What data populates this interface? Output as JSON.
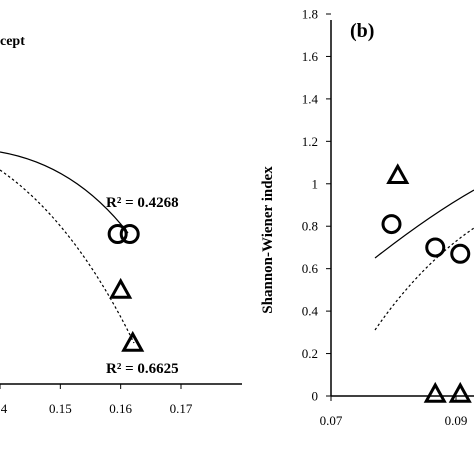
{
  "chart_data": [
    {
      "type": "scatter",
      "panel": "left",
      "legend_fragment": "cept",
      "xlim": [
        0.14,
        0.17
      ],
      "x_ticks": [
        "4",
        "0.15",
        "0.16",
        "0.17"
      ],
      "annotations": [
        {
          "text": "R² = 0.4268"
        },
        {
          "text": "R² = 0.6625"
        }
      ],
      "series": [
        {
          "marker": "circle",
          "x": [
            0.1595,
            0.1615
          ],
          "y": [
            0.55,
            0.55
          ],
          "trend": "solid"
        },
        {
          "marker": "triangle",
          "x": [
            0.16,
            0.162
          ],
          "y": [
            0.29,
            0.0
          ],
          "trend": "dotted"
        }
      ]
    },
    {
      "type": "scatter",
      "panel": "(b)",
      "ylabel": "Shannon-Wiener index",
      "ylim": [
        0,
        1.8
      ],
      "y_ticks": [
        "0",
        "0.2",
        "0.4",
        "0.6",
        "0.8",
        "1",
        "1.2",
        "1.4",
        "1.6",
        "1.8"
      ],
      "xlim": [
        0.07,
        0.1
      ],
      "x_ticks": [
        "0.07",
        "0.09"
      ],
      "series": [
        {
          "marker": "circle",
          "x": [
            0.08,
            0.087,
            0.091
          ],
          "y": [
            0.81,
            0.7,
            0.67
          ],
          "trend": "solid"
        },
        {
          "marker": "triangle",
          "x": [
            0.081,
            0.087,
            0.091
          ],
          "y": [
            1.04,
            0.0,
            0.0
          ],
          "trend": "dotted"
        }
      ]
    }
  ]
}
